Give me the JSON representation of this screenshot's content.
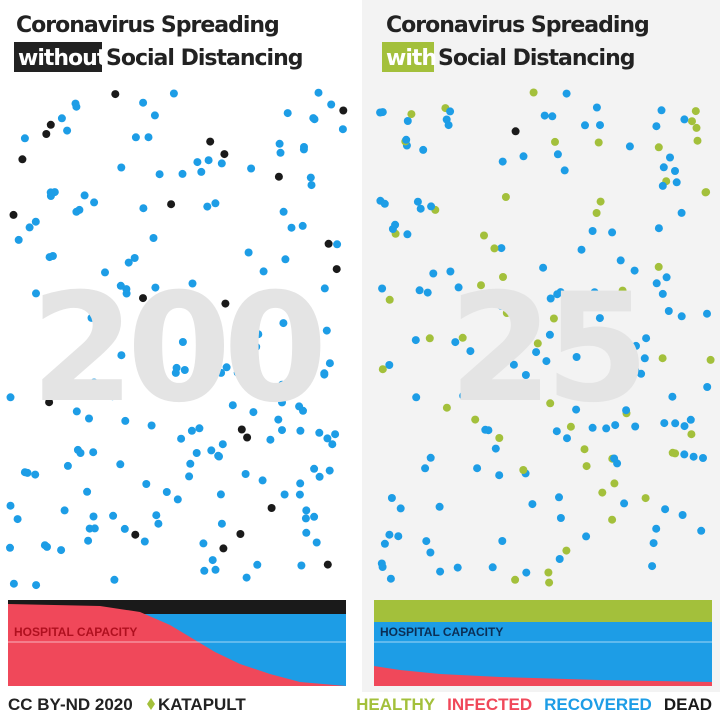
{
  "panels": [
    {
      "title": "Coronavirus Spreading",
      "highlight": "without",
      "subtitle": "Social Distancing",
      "counter": "200",
      "capacity_label": "HOSPITAL CAPACITY"
    },
    {
      "title": "Coronavirus Spreading",
      "highlight": "with",
      "subtitle": "Social Distancing",
      "counter": "25",
      "capacity_label": "HOSPITAL CAPACITY"
    }
  ],
  "footer": {
    "license": "CC BY-ND 2020",
    "brand": "KATAPULT",
    "legend": [
      {
        "label": "HEALTHY",
        "color": "#a3c03b"
      },
      {
        "label": "INFECTED",
        "color": "#f0485a"
      },
      {
        "label": "RECOVERED",
        "color": "#1d9de6"
      },
      {
        "label": "DEAD",
        "color": "#1a1a1a"
      }
    ]
  }
}
